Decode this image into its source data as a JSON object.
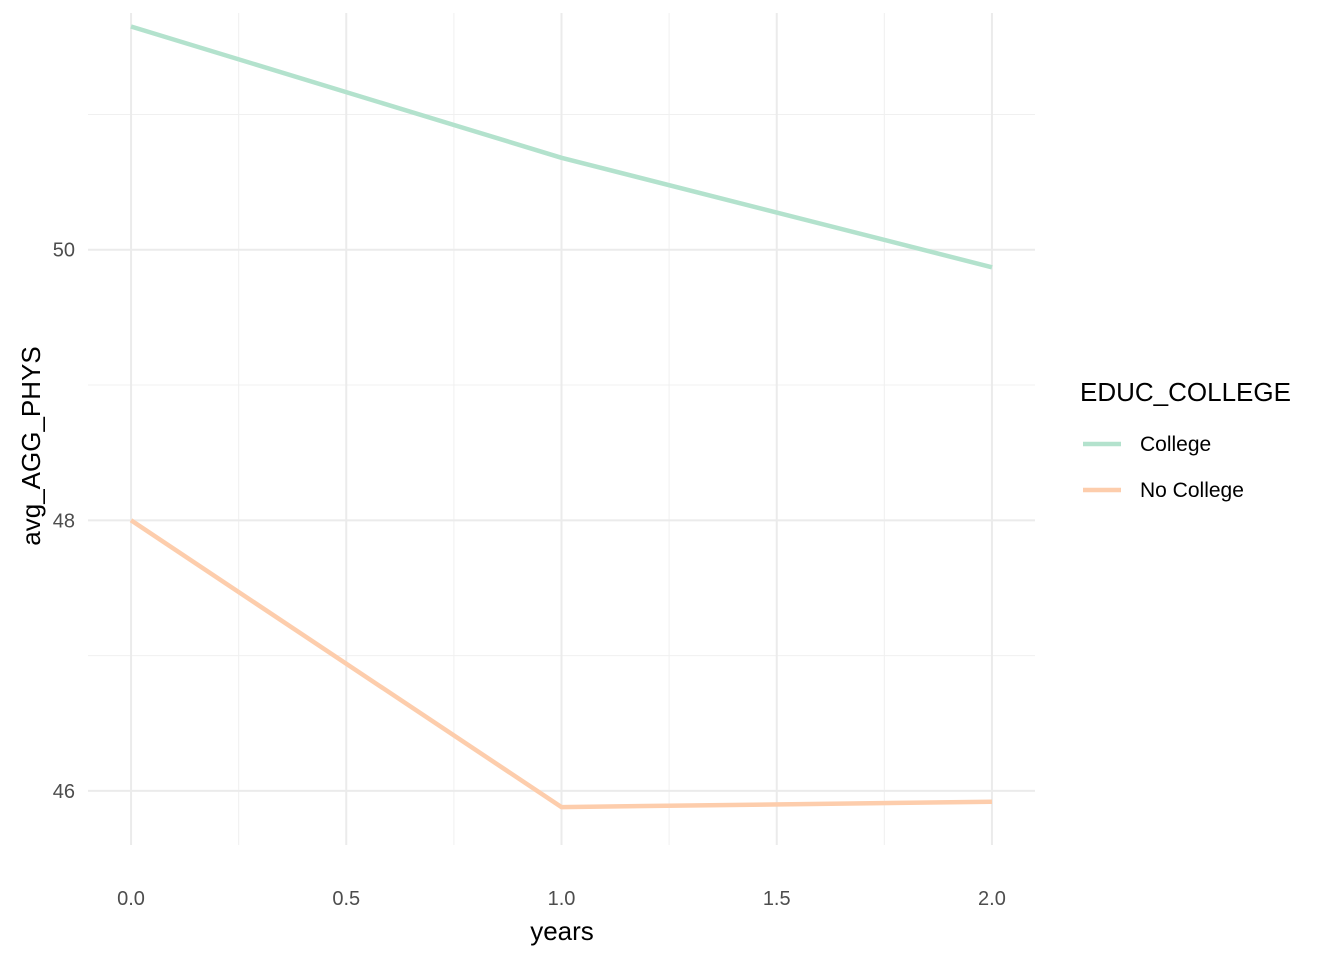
{
  "chart_data": {
    "type": "line",
    "title": "",
    "xlabel": "years",
    "ylabel": "avg_AGG_PHYS",
    "x": [
      0,
      1,
      2
    ],
    "xlim": [
      -0.1,
      2.1
    ],
    "ylim": [
      45.6,
      51.75
    ],
    "x_ticks": [
      0,
      0.5,
      1,
      1.5,
      2
    ],
    "x_tick_labels": [
      "0.0",
      "0.5",
      "1.0",
      "1.5",
      "2.0"
    ],
    "x_minor_ticks": [
      0.25,
      0.75,
      1.25,
      1.75
    ],
    "y_ticks": [
      46,
      48,
      50
    ],
    "y_tick_labels": [
      "46",
      "48",
      "50"
    ],
    "y_minor_ticks": [
      47,
      49,
      51
    ],
    "grid": true,
    "legend": {
      "title": "EDUC_COLLEGE",
      "position": "right"
    },
    "series": [
      {
        "name": "College",
        "color": "#b3e2cd",
        "values": [
          51.65,
          50.68,
          49.87
        ]
      },
      {
        "name": "No College",
        "color": "#fdcdac",
        "values": [
          48.0,
          45.88,
          45.92
        ]
      }
    ]
  }
}
